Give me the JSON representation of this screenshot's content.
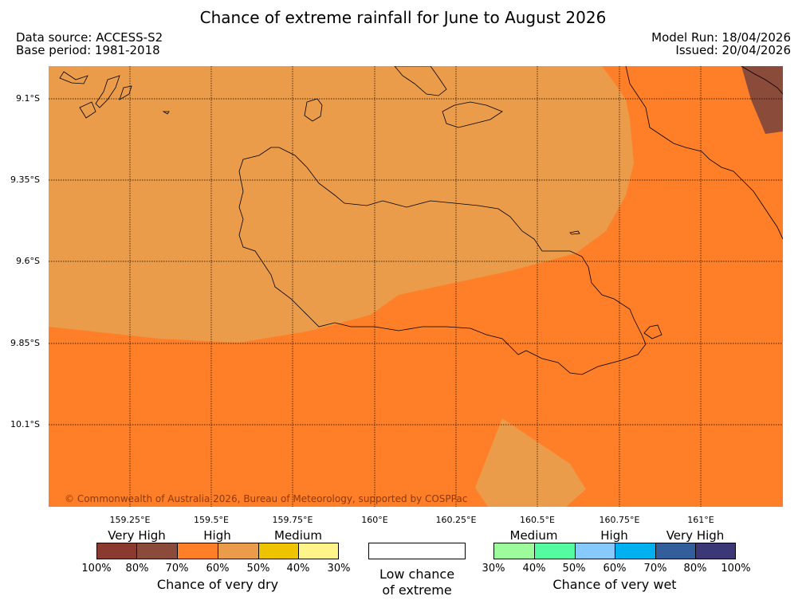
{
  "title": "Chance of extreme rainfall for June to August 2026",
  "source": {
    "data_source": "Data source: ACCESS-S2",
    "base_period": "Base period: 1981-2018",
    "model_run": "Model Run: 18/04/2026",
    "issued": "Issued: 20/04/2026"
  },
  "map": {
    "lat_labels": [
      "9.1°S",
      "9.35°S",
      "9.6°S",
      "9.85°S",
      "10.1°S"
    ],
    "lon_labels": [
      "159.25°E",
      "159.5°E",
      "159.75°E",
      "160°E",
      "160.25°E",
      "160.5°E",
      "160.75°E",
      "161°E"
    ],
    "copyright": "© Commonwealth of Australia 2026, Bureau of Meteorology, supported by COSPPac",
    "colors": {
      "high_dry": "#fe7f27",
      "medium_dry": "#ea9c4a",
      "very_high_dry": "#8b4b3a",
      "coast": "#000000"
    }
  },
  "legend": {
    "dry": {
      "categories": [
        "Very High",
        "High",
        "Medium"
      ],
      "colors": [
        "#8b3a2f",
        "#8b4b3a",
        "#fe7f27",
        "#ea9c4a",
        "#eec400",
        "#fff48a"
      ],
      "ticks": [
        "100%",
        "80%",
        "70%",
        "60%",
        "50%",
        "40%",
        "30%"
      ],
      "caption": "Chance of very dry"
    },
    "low": {
      "label_line1": "Low chance",
      "label_line2": "of extreme"
    },
    "wet": {
      "categories": [
        "Medium",
        "High",
        "Very High"
      ],
      "colors": [
        "#9dfb9c",
        "#54fba1",
        "#87c9fd",
        "#00b0ef",
        "#335e9c",
        "#3c3877"
      ],
      "ticks": [
        "30%",
        "40%",
        "50%",
        "60%",
        "70%",
        "80%",
        "100%"
      ],
      "caption": "Chance of very wet"
    }
  }
}
